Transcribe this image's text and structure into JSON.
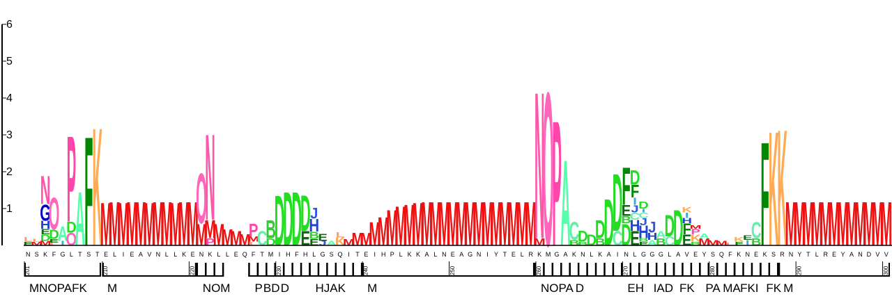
{
  "y_axis": {
    "ticks": [
      "1",
      "2",
      "3",
      "4",
      "5",
      "6"
    ]
  },
  "colors": {
    "M": "#ee1111",
    "N": "#ff55aa",
    "O": "#ff66bb",
    "P": "#ff44aa",
    "A": "#55ffaa",
    "K": "#ffaa55",
    "F": "#008800",
    "D": "#22dd22",
    "B": "#33cc33",
    "C": "#66eeaa",
    "E": "#116611",
    "G": "#0000cc",
    "H": "#2244cc",
    "I": "#44aacc",
    "J": "#3355dd",
    "L": "#ff9966"
  },
  "sequence": "NSKFGLTSTELIEAVNLLKENKLLEQFTMIHFHLGSQITEIHPLKKALNEAGNIYTELRKMGAKNLKAINLGGGLAVEYSQFKNEKSRNYTLREYANDVV",
  "position_numbers": [
    {
      "label": "201",
      "index": 0
    },
    {
      "label": "210",
      "index": 9
    },
    {
      "label": "220",
      "index": 19
    },
    {
      "label": "230",
      "index": 29
    },
    {
      "label": "240",
      "index": 39
    },
    {
      "label": "250",
      "index": 49
    },
    {
      "label": "260",
      "index": 59
    },
    {
      "label": "270",
      "index": 69
    },
    {
      "label": "280",
      "index": 79
    },
    {
      "label": "290",
      "index": 89
    },
    {
      "label": "300",
      "index": 99
    }
  ],
  "columns": [
    {
      "pos": 0,
      "letters": [
        [
          "E",
          0.1
        ],
        [
          "L",
          0.12
        ]
      ]
    },
    {
      "pos": 1,
      "letters": [
        [
          "M",
          0.1
        ],
        [
          "L",
          0.08
        ]
      ]
    },
    {
      "pos": 2,
      "letters": [
        [
          "M",
          0.12
        ],
        [
          "D",
          0.18
        ],
        [
          "E",
          0.15
        ],
        [
          "H",
          0.22
        ],
        [
          "G",
          0.45
        ],
        [
          "N",
          0.8
        ]
      ]
    },
    {
      "pos": 3,
      "letters": [
        [
          "L",
          0.08
        ],
        [
          "E",
          0.1
        ],
        [
          "D",
          0.25
        ],
        [
          "O",
          0.9
        ]
      ]
    },
    {
      "pos": 4,
      "letters": [
        [
          "I",
          0.12
        ],
        [
          "A",
          0.4
        ]
      ]
    },
    {
      "pos": 5,
      "letters": [
        [
          "O",
          0.35
        ],
        [
          "D",
          0.3
        ],
        [
          "P",
          2.4
        ]
      ]
    },
    {
      "pos": 6,
      "letters": [
        [
          "A",
          1.5
        ]
      ]
    },
    {
      "pos": 7,
      "letters": [
        [
          "F",
          3.05
        ]
      ]
    },
    {
      "pos": 8,
      "letters": [
        [
          "K",
          3.3
        ]
      ]
    },
    {
      "pos": 9,
      "letters": [
        [
          "M",
          1.2
        ]
      ]
    },
    {
      "pos": 10,
      "letters": [
        [
          "M",
          1.22
        ]
      ]
    },
    {
      "pos": 11,
      "letters": [
        [
          "M",
          1.2
        ]
      ]
    },
    {
      "pos": 12,
      "letters": [
        [
          "M",
          1.22
        ]
      ]
    },
    {
      "pos": 13,
      "letters": [
        [
          "M",
          1.22
        ]
      ]
    },
    {
      "pos": 14,
      "letters": [
        [
          "M",
          1.2
        ]
      ]
    },
    {
      "pos": 15,
      "letters": [
        [
          "M",
          1.22
        ]
      ]
    },
    {
      "pos": 16,
      "letters": [
        [
          "M",
          1.22
        ]
      ]
    },
    {
      "pos": 17,
      "letters": [
        [
          "M",
          1.2
        ]
      ]
    },
    {
      "pos": 18,
      "letters": [
        [
          "M",
          1.22
        ]
      ]
    },
    {
      "pos": 19,
      "letters": [
        [
          "M",
          1.22
        ]
      ]
    },
    {
      "pos": 20,
      "letters": [
        [
          "M",
          0.6
        ],
        [
          "O",
          1.4
        ]
      ]
    },
    {
      "pos": 21,
      "letters": [
        [
          "P",
          0.2
        ],
        [
          "M",
          0.5
        ],
        [
          "N",
          2.4
        ]
      ]
    },
    {
      "pos": 22,
      "letters": [
        [
          "M",
          0.6
        ]
      ]
    },
    {
      "pos": 23,
      "letters": [
        [
          "M",
          0.45
        ]
      ]
    },
    {
      "pos": 24,
      "letters": [
        [
          "M",
          0.4
        ]
      ]
    },
    {
      "pos": 25,
      "letters": [
        [
          "M",
          0.32
        ]
      ]
    },
    {
      "pos": 26,
      "letters": [
        [
          "L",
          0.1
        ],
        [
          "M",
          0.15
        ],
        [
          "P",
          0.35
        ]
      ]
    },
    {
      "pos": 27,
      "letters": [
        [
          "C",
          0.4
        ]
      ]
    },
    {
      "pos": 28,
      "letters": [
        [
          "D",
          0.2
        ],
        [
          "B",
          0.5
        ]
      ]
    },
    {
      "pos": 29,
      "letters": [
        [
          "D",
          1.4
        ]
      ]
    },
    {
      "pos": 30,
      "letters": [
        [
          "D",
          1.5
        ]
      ]
    },
    {
      "pos": 31,
      "letters": [
        [
          "D",
          1.5
        ]
      ]
    },
    {
      "pos": 32,
      "letters": [
        [
          "E",
          0.4
        ],
        [
          "D",
          1.0
        ]
      ]
    },
    {
      "pos": 33,
      "letters": [
        [
          "E",
          0.18
        ],
        [
          "B",
          0.2
        ],
        [
          "H",
          0.35
        ],
        [
          "J",
          0.3
        ]
      ]
    },
    {
      "pos": 34,
      "letters": [
        [
          "J",
          0.12
        ],
        [
          "E",
          0.2
        ]
      ]
    },
    {
      "pos": 35,
      "letters": [
        [
          "A",
          0.12
        ]
      ]
    },
    {
      "pos": 36,
      "letters": [
        [
          "K",
          0.22
        ],
        [
          "L",
          0.15
        ]
      ]
    },
    {
      "pos": 37,
      "letters": [
        [
          "M",
          0.18
        ]
      ]
    },
    {
      "pos": 38,
      "letters": [
        [
          "M",
          0.35
        ]
      ]
    },
    {
      "pos": 39,
      "letters": [
        [
          "M",
          0.35
        ]
      ]
    },
    {
      "pos": 40,
      "letters": [
        [
          "M",
          0.65
        ]
      ]
    },
    {
      "pos": 41,
      "letters": [
        [
          "M",
          0.8
        ]
      ]
    },
    {
      "pos": 42,
      "letters": [
        [
          "M",
          1.0
        ]
      ]
    },
    {
      "pos": 43,
      "letters": [
        [
          "M",
          1.1
        ]
      ]
    },
    {
      "pos": 44,
      "letters": [
        [
          "M",
          1.15
        ]
      ]
    },
    {
      "pos": 45,
      "letters": [
        [
          "M",
          1.2
        ]
      ]
    },
    {
      "pos": 46,
      "letters": [
        [
          "M",
          1.22
        ]
      ]
    },
    {
      "pos": 47,
      "letters": [
        [
          "M",
          1.22
        ]
      ]
    },
    {
      "pos": 48,
      "letters": [
        [
          "M",
          1.22
        ]
      ]
    },
    {
      "pos": 49,
      "letters": [
        [
          "M",
          1.22
        ]
      ]
    },
    {
      "pos": 50,
      "letters": [
        [
          "M",
          1.22
        ]
      ]
    },
    {
      "pos": 51,
      "letters": [
        [
          "M",
          1.22
        ]
      ]
    },
    {
      "pos": 52,
      "letters": [
        [
          "M",
          1.22
        ]
      ]
    },
    {
      "pos": 53,
      "letters": [
        [
          "M",
          1.22
        ]
      ]
    },
    {
      "pos": 54,
      "letters": [
        [
          "M",
          1.22
        ]
      ]
    },
    {
      "pos": 55,
      "letters": [
        [
          "M",
          1.22
        ]
      ]
    },
    {
      "pos": 56,
      "letters": [
        [
          "M",
          1.22
        ]
      ]
    },
    {
      "pos": 57,
      "letters": [
        [
          "M",
          1.22
        ]
      ]
    },
    {
      "pos": 58,
      "letters": [
        [
          "M",
          1.22
        ]
      ]
    },
    {
      "pos": 59,
      "letters": [
        [
          "M",
          0.2
        ],
        [
          "N",
          4.1
        ]
      ]
    },
    {
      "pos": 60,
      "letters": [
        [
          "O",
          4.3
        ]
      ]
    },
    {
      "pos": 61,
      "letters": [
        [
          "P",
          3.5
        ]
      ]
    },
    {
      "pos": 62,
      "letters": [
        [
          "A",
          2.4
        ]
      ]
    },
    {
      "pos": 63,
      "letters": [
        [
          "B",
          0.15
        ],
        [
          "C",
          0.5
        ]
      ]
    },
    {
      "pos": 64,
      "letters": [
        [
          "B",
          0.1
        ],
        [
          "D",
          0.3
        ]
      ]
    },
    {
      "pos": 65,
      "letters": [
        [
          "D",
          0.3
        ]
      ]
    },
    {
      "pos": 66,
      "letters": [
        [
          "B",
          0.2
        ],
        [
          "D",
          0.5
        ]
      ]
    },
    {
      "pos": 67,
      "letters": [
        [
          "D",
          1.3
        ]
      ]
    },
    {
      "pos": 68,
      "letters": [
        [
          "C",
          0.4
        ],
        [
          "D",
          1.6
        ]
      ]
    },
    {
      "pos": 69,
      "letters": [
        [
          "D",
          0.6
        ],
        [
          "B",
          0.2
        ],
        [
          "E",
          0.3
        ],
        [
          "F",
          1.05
        ]
      ]
    },
    {
      "pos": 70,
      "letters": [
        [
          "E",
          0.4
        ],
        [
          "H",
          0.3
        ],
        [
          "C",
          0.2
        ],
        [
          "J",
          0.2
        ],
        [
          "I",
          0.2
        ],
        [
          "F",
          0.35
        ],
        [
          "D",
          0.4
        ]
      ]
    },
    {
      "pos": 71,
      "letters": [
        [
          "E",
          0.1
        ],
        [
          "B",
          0.1
        ],
        [
          "H",
          0.35
        ],
        [
          "J",
          0.2
        ],
        [
          "C",
          0.15
        ],
        [
          "I",
          0.1
        ],
        [
          "D",
          0.2
        ]
      ]
    },
    {
      "pos": 72,
      "letters": [
        [
          "A",
          0.15
        ],
        [
          "H",
          0.2
        ],
        [
          "J",
          0.3
        ]
      ]
    },
    {
      "pos": 73,
      "letters": [
        [
          "B",
          0.2
        ],
        [
          "A",
          0.2
        ]
      ]
    },
    {
      "pos": 74,
      "letters": [
        [
          "C",
          0.25
        ],
        [
          "D",
          0.6
        ]
      ]
    },
    {
      "pos": 75,
      "letters": [
        [
          "D",
          1.0
        ]
      ]
    },
    {
      "pos": 76,
      "letters": [
        [
          "E",
          0.3
        ],
        [
          "F",
          0.3
        ],
        [
          "H",
          0.15
        ],
        [
          "I",
          0.15
        ],
        [
          "K",
          0.15
        ]
      ]
    },
    {
      "pos": 77,
      "letters": [
        [
          "B",
          0.1
        ],
        [
          "K",
          0.2
        ],
        [
          "P",
          0.15
        ],
        [
          "M",
          0.1
        ]
      ]
    },
    {
      "pos": 78,
      "letters": [
        [
          "M",
          0.2
        ],
        [
          "A",
          0.12
        ]
      ]
    },
    {
      "pos": 79,
      "letters": [
        [
          "M",
          0.15
        ]
      ]
    },
    {
      "pos": 80,
      "letters": [
        [
          "M",
          0.12
        ]
      ]
    },
    {
      "pos": 81,
      "letters": [
        [
          "L",
          0.08
        ]
      ]
    },
    {
      "pos": 82,
      "letters": [
        [
          "F",
          0.1
        ],
        [
          "K",
          0.12
        ]
      ]
    },
    {
      "pos": 83,
      "letters": [
        [
          "I",
          0.15
        ],
        [
          "E",
          0.12
        ]
      ]
    },
    {
      "pos": 84,
      "letters": [
        [
          "B",
          0.2
        ],
        [
          "C",
          0.45
        ]
      ]
    },
    {
      "pos": 85,
      "letters": [
        [
          "F",
          2.9
        ]
      ]
    },
    {
      "pos": 86,
      "letters": [
        [
          "K",
          3.2
        ]
      ]
    },
    {
      "pos": 87,
      "letters": [
        [
          "K",
          3.25
        ]
      ]
    },
    {
      "pos": 88,
      "letters": [
        [
          "M",
          1.22
        ]
      ]
    },
    {
      "pos": 89,
      "letters": [
        [
          "M",
          1.22
        ]
      ]
    },
    {
      "pos": 90,
      "letters": [
        [
          "M",
          1.22
        ]
      ]
    },
    {
      "pos": 91,
      "letters": [
        [
          "M",
          1.22
        ]
      ]
    },
    {
      "pos": 92,
      "letters": [
        [
          "M",
          1.22
        ]
      ]
    },
    {
      "pos": 93,
      "letters": [
        [
          "M",
          1.22
        ]
      ]
    },
    {
      "pos": 94,
      "letters": [
        [
          "M",
          1.22
        ]
      ]
    },
    {
      "pos": 95,
      "letters": [
        [
          "M",
          1.22
        ]
      ]
    },
    {
      "pos": 96,
      "letters": [
        [
          "M",
          1.22
        ]
      ]
    },
    {
      "pos": 97,
      "letters": [
        [
          "M",
          1.22
        ]
      ]
    },
    {
      "pos": 98,
      "letters": [
        [
          "M",
          1.22
        ]
      ]
    },
    {
      "pos": 99,
      "letters": [
        [
          "M",
          1.22
        ]
      ]
    }
  ],
  "regions": [
    {
      "label": "MNOPAFK",
      "start": 0,
      "end": 8
    },
    {
      "label": "M",
      "start": 9,
      "end": 19
    },
    {
      "label": "NOM",
      "start": 20,
      "end": 22
    },
    {
      "label": "P",
      "start": 26,
      "end": 26
    },
    {
      "label": "BD",
      "start": 27,
      "end": 28
    },
    {
      "label": "D",
      "start": 29,
      "end": 32
    },
    {
      "label": "HJAK",
      "start": 33,
      "end": 38
    },
    {
      "label": "M",
      "start": 39,
      "end": 58
    },
    {
      "label": "NOPA",
      "start": 59,
      "end": 62
    },
    {
      "label": "D",
      "start": 63,
      "end": 68
    },
    {
      "label": "EH",
      "start": 69,
      "end": 71
    },
    {
      "label": "IAD",
      "start": 72,
      "end": 74
    },
    {
      "label": "FK",
      "start": 75,
      "end": 77
    },
    {
      "label": "PA",
      "start": 78,
      "end": 79
    },
    {
      "label": "MA",
      "start": 80,
      "end": 81
    },
    {
      "label": "FKI",
      "start": 82,
      "end": 84
    },
    {
      "label": "FK",
      "start": 85,
      "end": 86
    },
    {
      "label": "M",
      "start": 87,
      "end": 99
    }
  ]
}
